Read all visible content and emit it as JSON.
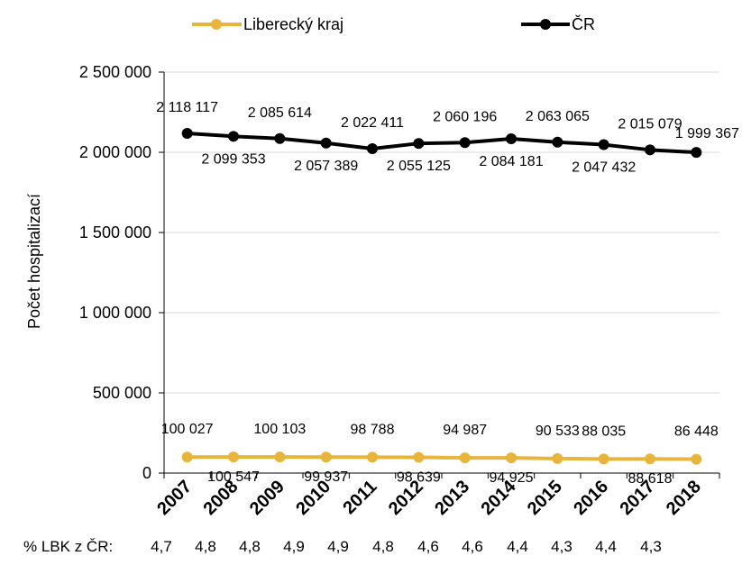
{
  "chart_data": {
    "type": "line",
    "categories": [
      "2007",
      "2008",
      "2009",
      "2010",
      "2011",
      "2012",
      "2013",
      "2014",
      "2015",
      "2016",
      "2017",
      "2018"
    ],
    "series": [
      {
        "name": "Liberecký kraj",
        "color": "#E8B53C",
        "values": [
          100027,
          100547,
          100103,
          99937,
          98788,
          98639,
          94987,
          94925,
          90533,
          88035,
          88618,
          86448
        ],
        "labels": [
          "100 027",
          "100 547",
          "100 103",
          "99 937",
          "98 788",
          "98 639",
          "94 987",
          "94 925",
          "90 533",
          "88 035",
          "88 618",
          "86 448"
        ]
      },
      {
        "name": "ČR",
        "color": "#000000",
        "values": [
          2118117,
          2099353,
          2085614,
          2057389,
          2022411,
          2055125,
          2060196,
          2084181,
          2063065,
          2047432,
          2015079,
          1999367
        ],
        "labels": [
          "2 118 117",
          "2 099 353",
          "2 085 614",
          "2 057 389",
          "2 022 411",
          "2 055 125",
          "2 060 196",
          "2 084 181",
          "2 063 065",
          "2 047 432",
          "2 015 079",
          "1 999 367"
        ]
      }
    ],
    "ylabel": "Počet hospitalizací",
    "ylim": [
      0,
      2500000
    ],
    "yticks": [
      0,
      500000,
      1000000,
      1500000,
      2000000,
      2500000
    ],
    "ytick_labels": [
      "0",
      "500 000",
      "1 000 000",
      "1 500 000",
      "2 000 000",
      "2 500 000"
    ],
    "grid": true,
    "legend": "top"
  },
  "lbk_share": {
    "label": "% LBK z ČR:",
    "values": [
      "4,7",
      "4,8",
      "4,8",
      "4,9",
      "4,9",
      "4,8",
      "4,6",
      "4,6",
      "4,4",
      "4,3",
      "4,4",
      "4,3"
    ]
  }
}
